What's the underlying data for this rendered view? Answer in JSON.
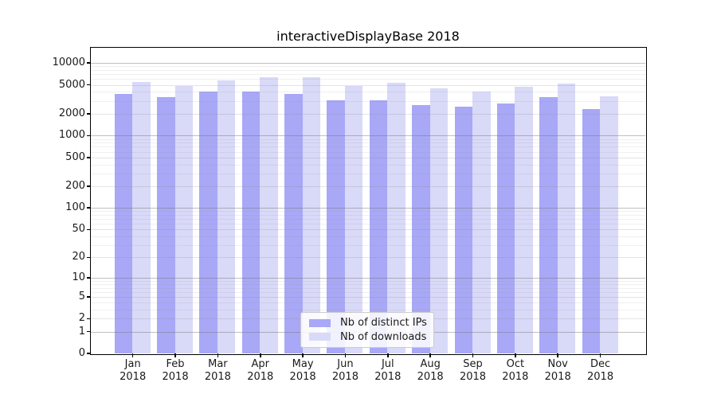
{
  "title": "interactiveDisplayBase 2018",
  "colors": {
    "ips_bar": "#a8a8f6",
    "downloads_bar": "#d9d9f8",
    "grid_major": "rgba(115,115,115,0.45)",
    "grid_mid": "rgba(130,130,130,0.22)",
    "grid_minor": "rgba(140,140,140,0.13)",
    "text": "#1a1a1a",
    "frame": "#000000",
    "legend_border": "#cccccc"
  },
  "legend": {
    "items": [
      {
        "label": "Nb of distinct IPs",
        "color_key": "ips_bar"
      },
      {
        "label": "Nb of downloads",
        "color_key": "downloads_bar"
      }
    ]
  },
  "y_axis": {
    "tick_values": [
      0,
      1,
      2,
      5,
      10,
      20,
      50,
      100,
      200,
      500,
      1000,
      2000,
      5000,
      10000
    ]
  },
  "x_axis": {
    "months": [
      "Jan",
      "Feb",
      "Mar",
      "Apr",
      "May",
      "Jun",
      "Jul",
      "Aug",
      "Sep",
      "Oct",
      "Nov",
      "Dec"
    ],
    "year": "2018"
  },
  "chart_data": {
    "type": "bar",
    "title": "interactiveDisplayBase 2018",
    "categories": [
      "Jan 2018",
      "Feb 2018",
      "Mar 2018",
      "Apr 2018",
      "May 2018",
      "Jun 2018",
      "Jul 2018",
      "Aug 2018",
      "Sep 2018",
      "Oct 2018",
      "Nov 2018",
      "Dec 2018"
    ],
    "series": [
      {
        "name": "Nb of distinct IPs",
        "color": "#a8a8f6",
        "values": [
          3750,
          3400,
          4000,
          4000,
          3800,
          3050,
          3100,
          2650,
          2500,
          2800,
          3400,
          2300
        ]
      },
      {
        "name": "Nb of downloads",
        "color": "#d9d9f8",
        "values": [
          5500,
          4850,
          5800,
          6400,
          6400,
          4850,
          5300,
          4450,
          4000,
          4700,
          5200,
          3450
        ]
      }
    ],
    "yscale": "log1p",
    "ylim": [
      0,
      16000
    ],
    "y_tick_labels": [
      "0",
      "1",
      "2",
      "5",
      "10",
      "20",
      "50",
      "100",
      "200",
      "500",
      "1000",
      "2000",
      "5000",
      "10000"
    ],
    "xlabel": "",
    "ylabel": "",
    "grid": true,
    "legend_position": "lower center"
  }
}
